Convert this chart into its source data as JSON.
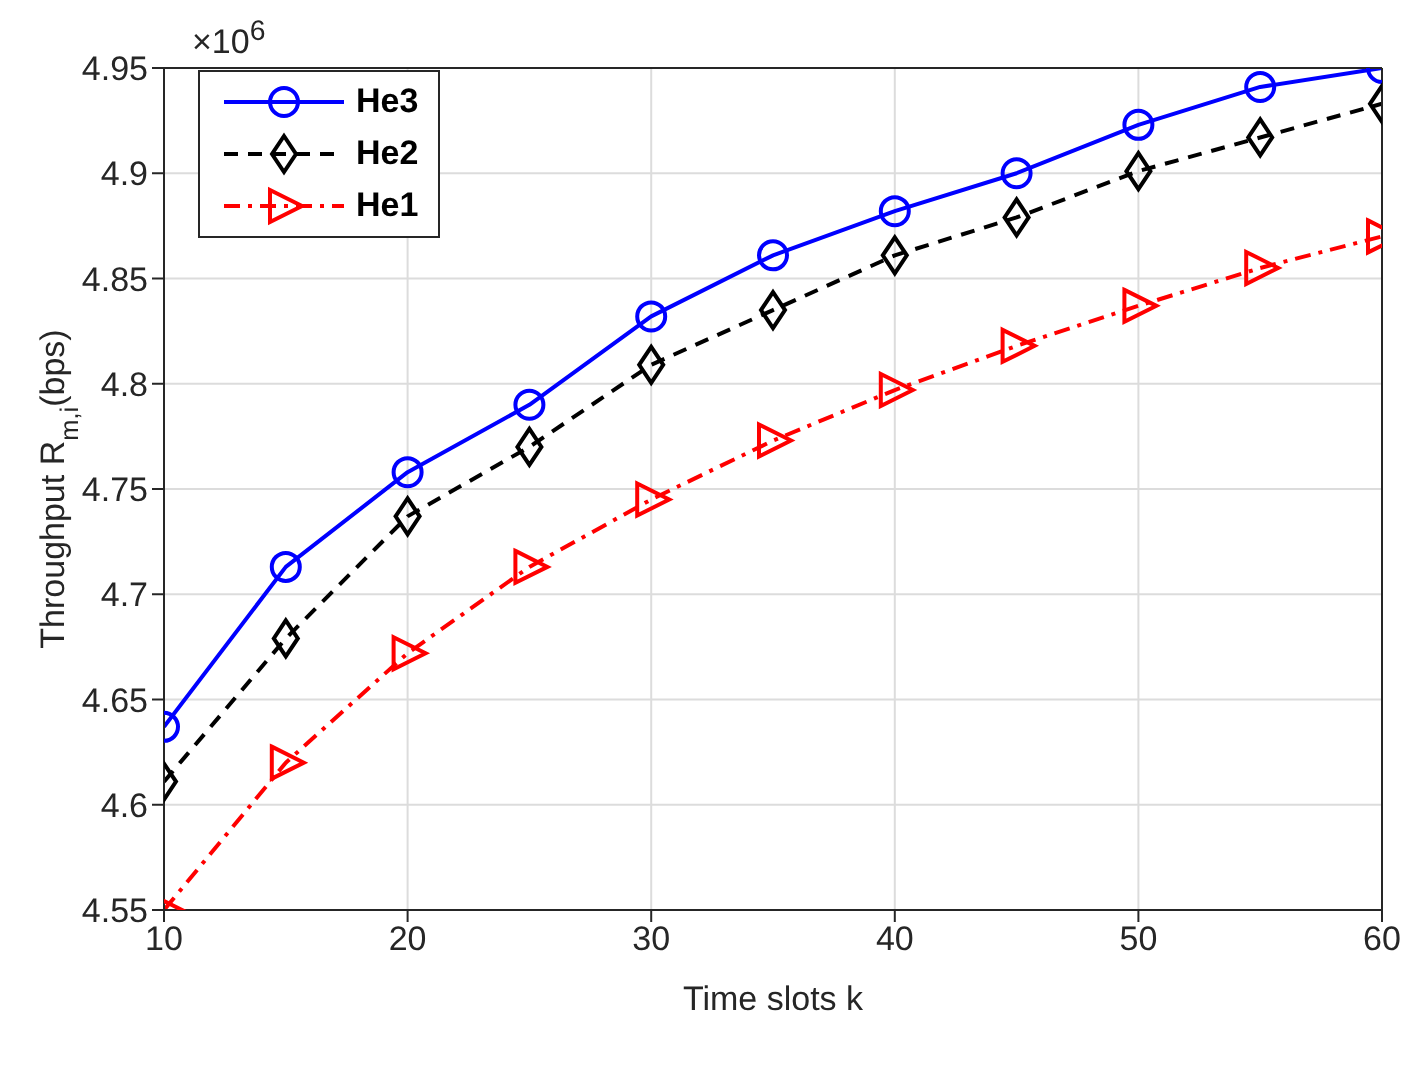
{
  "chart_data": {
    "type": "line",
    "xlabel": "Time slots k",
    "ylabel": "Throughput R$_{m,i}$(bps)",
    "annotations": [
      "×10$^{6}$"
    ],
    "x": [
      10,
      15,
      20,
      25,
      30,
      35,
      40,
      45,
      50,
      55,
      60
    ],
    "series": [
      {
        "name": "He3",
        "color": "#0000ff",
        "marker": "circle",
        "line_style": "solid",
        "values": [
          4.637,
          4.713,
          4.758,
          4.79,
          4.832,
          4.861,
          4.882,
          4.9,
          4.923,
          4.941,
          4.95
        ]
      },
      {
        "name": "He2",
        "color": "#000000",
        "marker": "diamond",
        "line_style": "dashed",
        "values": [
          4.611,
          4.679,
          4.737,
          4.77,
          4.809,
          4.835,
          4.861,
          4.879,
          4.901,
          4.917,
          4.933
        ]
      },
      {
        "name": "He1",
        "color": "#ff0000",
        "marker": "triangle",
        "line_style": "dashdot",
        "values": [
          4.55,
          4.62,
          4.672,
          4.713,
          4.745,
          4.773,
          4.797,
          4.818,
          4.837,
          4.855,
          4.87
        ]
      }
    ],
    "xlim": [
      10,
      60
    ],
    "xticks": [
      10,
      20,
      30,
      40,
      50,
      60
    ],
    "ylim": [
      4.55,
      4.95
    ],
    "yticks": [
      4.55,
      4.6,
      4.65,
      4.7,
      4.75,
      4.8,
      4.85,
      4.9,
      4.95
    ],
    "grid": true,
    "legend": "top left"
  }
}
